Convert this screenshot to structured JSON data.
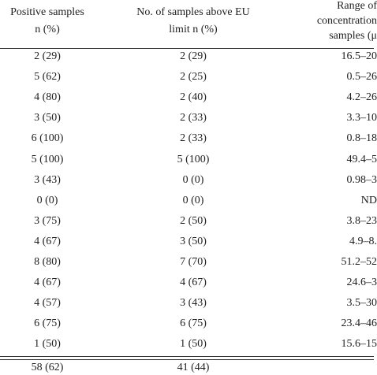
{
  "table": {
    "headers": [
      [
        "Positive samples",
        "n (%)"
      ],
      [
        "No. of samples above EU",
        "limit n (%)"
      ],
      [
        "Range of",
        "concentration",
        "samples (μ"
      ]
    ],
    "rows": [
      [
        "2 (29)",
        "2 (29)",
        "16.5–20"
      ],
      [
        "5 (62)",
        "2 (25)",
        "0.5–26"
      ],
      [
        "4 (80)",
        "2 (40)",
        "4.2–26"
      ],
      [
        "3 (50)",
        "2 (33)",
        "3.3–10"
      ],
      [
        "6 (100)",
        "2 (33)",
        "0.8–18"
      ],
      [
        "5 (100)",
        "5 (100)",
        "49.4–5"
      ],
      [
        "3 (43)",
        "0 (0)",
        "0.98–3"
      ],
      [
        "0 (0)",
        "0 (0)",
        "ND"
      ],
      [
        "3 (75)",
        "2 (50)",
        "3.8–23"
      ],
      [
        "4 (67)",
        "3 (50)",
        "4.9–8."
      ],
      [
        "8 (80)",
        "7 (70)",
        "51.2–52"
      ],
      [
        "4 (67)",
        "4 (67)",
        "24.6–3"
      ],
      [
        "4 (57)",
        "3 (43)",
        "3.5–30"
      ],
      [
        "6 (75)",
        "6 (75)",
        "23.4–46"
      ],
      [
        "1 (50)",
        "1 (50)",
        "15.6–15"
      ]
    ],
    "total": [
      "58 (62)",
      "41 (44)"
    ]
  }
}
